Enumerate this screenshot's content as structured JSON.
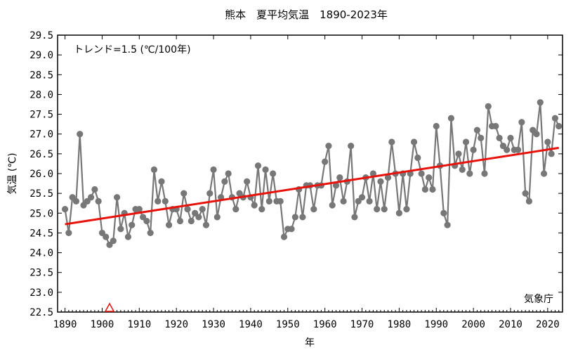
{
  "chart_data": {
    "type": "line",
    "title": "熊本　夏平均気温　1890-2023年",
    "xlabel": "年",
    "ylabel": "気温 (℃)",
    "xlim": [
      1888,
      2024
    ],
    "ylim": [
      22.5,
      29.5
    ],
    "xticks": [
      1890,
      1900,
      1910,
      1920,
      1930,
      1940,
      1950,
      1960,
      1970,
      1980,
      1990,
      2000,
      2010,
      2020
    ],
    "yticks": [
      22.5,
      23.0,
      23.5,
      24.0,
      24.5,
      25.0,
      25.5,
      26.0,
      26.5,
      27.0,
      27.5,
      28.0,
      28.5,
      29.0,
      29.5
    ],
    "ytick_labels": [
      "22.5",
      "23.0",
      "23.5",
      "24.0",
      "24.5",
      "25.0",
      "25.5",
      "26.0",
      "26.5",
      "27.0",
      "27.5",
      "28.0",
      "28.5",
      "29.0",
      "29.5"
    ],
    "trend_label": "トレンド=1.5 (℃/100年)",
    "source_label": "気象庁",
    "series": [
      {
        "x": [
          1890,
          1891,
          1892,
          1893,
          1894,
          1895,
          1896,
          1897,
          1898,
          1899,
          1900,
          1901,
          1902,
          1903,
          1904,
          1905,
          1906,
          1907,
          1908,
          1909,
          1910,
          1911,
          1912,
          1913,
          1914,
          1915,
          1916,
          1917,
          1918,
          1919,
          1920,
          1921,
          1922,
          1923,
          1924,
          1925,
          1926,
          1927,
          1928,
          1929,
          1930,
          1931,
          1932,
          1933,
          1934,
          1935,
          1936,
          1937,
          1938,
          1939,
          1940,
          1941,
          1942,
          1943,
          1944,
          1945,
          1946,
          1947,
          1948,
          1949,
          1950,
          1951,
          1952,
          1953,
          1954,
          1955,
          1956,
          1957,
          1958,
          1959,
          1960,
          1961,
          1962,
          1963,
          1964,
          1965,
          1966,
          1967,
          1968,
          1969,
          1970,
          1971,
          1972,
          1973,
          1974,
          1975,
          1976,
          1977,
          1978,
          1979,
          1980,
          1981,
          1982,
          1983,
          1984,
          1985,
          1986,
          1987,
          1988,
          1989,
          1990,
          1991,
          1992,
          1993,
          1994,
          1995,
          1996,
          1997,
          1998,
          1999,
          2000,
          2001,
          2002,
          2003,
          2004,
          2005,
          2006,
          2007,
          2008,
          2009,
          2010,
          2011,
          2012,
          2013,
          2014,
          2015,
          2016,
          2017,
          2018,
          2019,
          2020,
          2021,
          2022,
          2023
        ],
        "values": [
          25.1,
          24.5,
          25.4,
          25.3,
          27.0,
          25.2,
          25.3,
          25.4,
          25.6,
          25.3,
          24.5,
          24.4,
          24.2,
          24.3,
          25.4,
          24.6,
          25.0,
          24.4,
          24.7,
          25.1,
          25.1,
          24.9,
          24.8,
          24.5,
          26.1,
          25.3,
          25.8,
          25.3,
          24.7,
          25.1,
          25.1,
          24.8,
          25.5,
          25.1,
          24.8,
          25.0,
          24.9,
          25.1,
          24.7,
          25.5,
          26.1,
          24.9,
          25.4,
          25.8,
          26.0,
          25.4,
          25.1,
          25.5,
          25.4,
          25.8,
          25.4,
          25.2,
          26.2,
          25.1,
          26.1,
          25.3,
          26.0,
          25.3,
          25.3,
          24.4,
          24.6,
          24.6,
          24.9,
          25.6,
          24.9,
          25.7,
          25.7,
          25.1,
          25.7,
          25.7,
          26.3,
          26.7,
          25.2,
          25.7,
          25.9,
          25.3,
          25.8,
          26.7,
          24.9,
          25.3,
          25.4,
          25.9,
          25.3,
          26.0,
          25.1,
          25.8,
          25.1,
          25.9,
          26.8,
          26.0,
          25.0,
          26.0,
          25.1,
          26.0,
          26.8,
          26.4,
          26.0,
          25.6,
          25.9,
          25.6,
          27.2,
          26.2,
          25.0,
          24.7,
          27.4,
          26.2,
          26.5,
          26.1,
          26.8,
          26.0,
          26.6,
          27.1,
          26.9,
          26.0,
          27.7,
          27.2,
          27.2,
          26.9,
          26.7,
          26.6,
          26.9,
          26.6,
          26.6,
          27.3,
          25.5,
          25.3,
          27.1,
          27.0,
          27.8,
          26.0,
          26.8,
          26.5,
          27.4,
          27.2
        ]
      }
    ],
    "trend_line": {
      "x": [
        1890,
        2023
      ],
      "y": [
        24.72,
        26.65
      ]
    },
    "markers": [
      {
        "x": 1902,
        "y": 22.5,
        "shape": "triangle-open"
      }
    ],
    "grid": false,
    "colors": {
      "series": "#777777",
      "marker": "#777777",
      "trend": "#e8120c",
      "triangle": "#e8120c"
    }
  }
}
